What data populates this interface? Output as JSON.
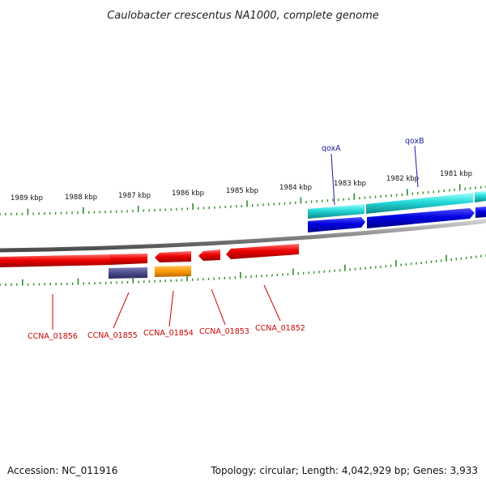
{
  "title": "Caulobacter crescentus NA1000, complete genome",
  "accession_text": "Accession: NC_011916",
  "info_text": "Topology: circular; Length: 4,042,929 bp; Genes: 3,933",
  "colors": {
    "backbone": "#8a8a8a",
    "tick": "#2e8b2e",
    "forward_cds": "#0000dd",
    "forward_feature": "#22cccc",
    "reverse_cds": "#dd0000",
    "reverse_misc_1": "#4b4b8f",
    "reverse_misc_2": "#ff9900",
    "label_red": "#cc0000",
    "label_blue": "#1a1aa0"
  },
  "kbp_labels": [
    "1989 kbp",
    "1988 kbp",
    "1987 kbp",
    "1986 kbp",
    "1985 kbp",
    "1984 kbp",
    "1983 kbp",
    "1982 kbp",
    "1981 kbp"
  ],
  "forward_genes": [
    "qoxA",
    "qoxB"
  ],
  "reverse_genes": [
    "CCNA_01856",
    "CCNA_01855",
    "CCNA_01854",
    "CCNA_01853",
    "CCNA_01852"
  ]
}
